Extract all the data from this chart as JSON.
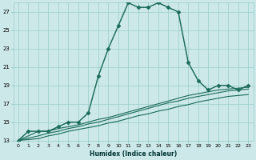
{
  "xlabel": "Humidex (Indice chaleur)",
  "background_color": "#cce8e8",
  "grid_color": "#99cccc",
  "line_color": "#1a6b5a",
  "xlim": [
    -0.5,
    23.5
  ],
  "ylim": [
    13,
    28
  ],
  "xticks": [
    0,
    1,
    2,
    3,
    4,
    5,
    6,
    7,
    8,
    9,
    10,
    11,
    12,
    13,
    14,
    15,
    16,
    17,
    18,
    19,
    20,
    21,
    22,
    23
  ],
  "yticks": [
    13,
    15,
    17,
    19,
    21,
    23,
    25,
    27
  ],
  "series": [
    {
      "x": [
        0,
        1,
        2,
        3,
        4,
        5,
        6,
        7,
        8,
        9,
        10,
        11,
        12,
        13,
        14,
        15,
        16,
        17,
        18,
        19,
        20,
        21,
        22,
        23
      ],
      "y": [
        13,
        14,
        14,
        14,
        14.5,
        15,
        15,
        16,
        20,
        23,
        25.5,
        28,
        27.5,
        27.5,
        28,
        27.5,
        27,
        21.5,
        19.5,
        18.5,
        19,
        19,
        18.5,
        19
      ],
      "marker": "D",
      "markersize": 2.5,
      "linewidth": 1.0,
      "linestyle": "-"
    },
    {
      "x": [
        0,
        2,
        3,
        4,
        5,
        6,
        7,
        8,
        9,
        10,
        11,
        12,
        13,
        14,
        15,
        16,
        17,
        18,
        19,
        20,
        21,
        22,
        23
      ],
      "y": [
        13,
        14,
        14,
        14.3,
        14.5,
        14.7,
        15,
        15.3,
        15.5,
        15.8,
        16.1,
        16.4,
        16.7,
        17.0,
        17.3,
        17.6,
        17.9,
        18.1,
        18.3,
        18.5,
        18.6,
        18.7,
        18.8
      ],
      "marker": null,
      "markersize": 0,
      "linewidth": 0.8,
      "linestyle": "-"
    },
    {
      "x": [
        0,
        2,
        3,
        4,
        5,
        6,
        7,
        8,
        9,
        10,
        11,
        12,
        13,
        14,
        15,
        16,
        17,
        18,
        19,
        20,
        21,
        22,
        23
      ],
      "y": [
        13,
        13.5,
        13.8,
        14.0,
        14.3,
        14.5,
        14.8,
        15.0,
        15.3,
        15.6,
        15.9,
        16.2,
        16.5,
        16.8,
        17.1,
        17.3,
        17.6,
        17.8,
        18.0,
        18.2,
        18.4,
        18.5,
        18.6
      ],
      "marker": null,
      "markersize": 0,
      "linewidth": 0.8,
      "linestyle": "-"
    },
    {
      "x": [
        0,
        2,
        3,
        4,
        5,
        6,
        7,
        8,
        9,
        10,
        11,
        12,
        13,
        14,
        15,
        16,
        17,
        18,
        19,
        20,
        21,
        22,
        23
      ],
      "y": [
        13,
        13.2,
        13.5,
        13.7,
        14.0,
        14.2,
        14.4,
        14.6,
        14.9,
        15.1,
        15.4,
        15.7,
        15.9,
        16.2,
        16.4,
        16.7,
        16.9,
        17.2,
        17.4,
        17.6,
        17.8,
        17.9,
        18.0
      ],
      "marker": null,
      "markersize": 0,
      "linewidth": 0.8,
      "linestyle": "-"
    }
  ],
  "dotted_series": {
    "x": [
      0,
      1,
      2,
      3,
      4,
      5,
      6,
      7,
      8,
      9,
      10,
      11,
      12,
      13,
      14,
      15,
      16,
      17,
      18,
      19,
      20,
      21,
      22,
      23
    ],
    "y": [
      13,
      14,
      14,
      14,
      14.5,
      15,
      15,
      16,
      20,
      23,
      25.5,
      28,
      27.5,
      27.5,
      28,
      27.5,
      27,
      21.5,
      19.5,
      18.5,
      19,
      19,
      18.5,
      19
    ],
    "linestyle": "dotted",
    "linewidth": 0.7
  }
}
